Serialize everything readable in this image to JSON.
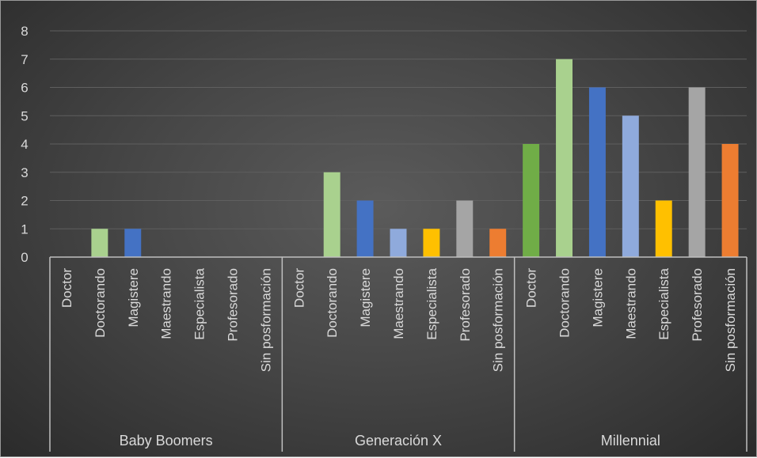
{
  "chart_data": {
    "type": "bar",
    "title": "",
    "xlabel": "",
    "ylabel": "",
    "ylim": [
      0,
      8
    ],
    "yticks": [
      "0",
      "1",
      "2",
      "3",
      "4",
      "5",
      "6",
      "7",
      "8"
    ],
    "grid": true,
    "legend": "none",
    "groups": [
      {
        "name": "Baby Boomers",
        "categories": [
          "Doctor",
          "Doctorando",
          "Magistere",
          "Maestrando",
          "Especialista",
          "Profesorado",
          "Sin posformación"
        ],
        "values": [
          0,
          1,
          1,
          0,
          0,
          0,
          0
        ]
      },
      {
        "name": "Generación X",
        "categories": [
          "Doctor",
          "Doctorando",
          "Magistere",
          "Maestrando",
          "Especialista",
          "Profesorado",
          "Sin posformación"
        ],
        "values": [
          0,
          3,
          2,
          1,
          1,
          2,
          1
        ]
      },
      {
        "name": "Millennial",
        "categories": [
          "Doctor",
          "Doctorando",
          "Magistere",
          "Maestrando",
          "Especialista",
          "Profesorado",
          "Sin posformación"
        ],
        "values": [
          4,
          7,
          6,
          5,
          2,
          6,
          4
        ]
      }
    ],
    "category_colors": {
      "Doctor": "#70ad47",
      "Doctorando": "#a9d18e",
      "Magistere": "#4472c4",
      "Maestrando": "#8faadc",
      "Especialista": "#ffc000",
      "Profesorado": "#a5a5a5",
      "Sin posformación": "#ed7d31"
    },
    "colors": {
      "gridline": "#5f5f5f",
      "axis": "#bfbfbf",
      "text": "#d9d9d9"
    }
  }
}
